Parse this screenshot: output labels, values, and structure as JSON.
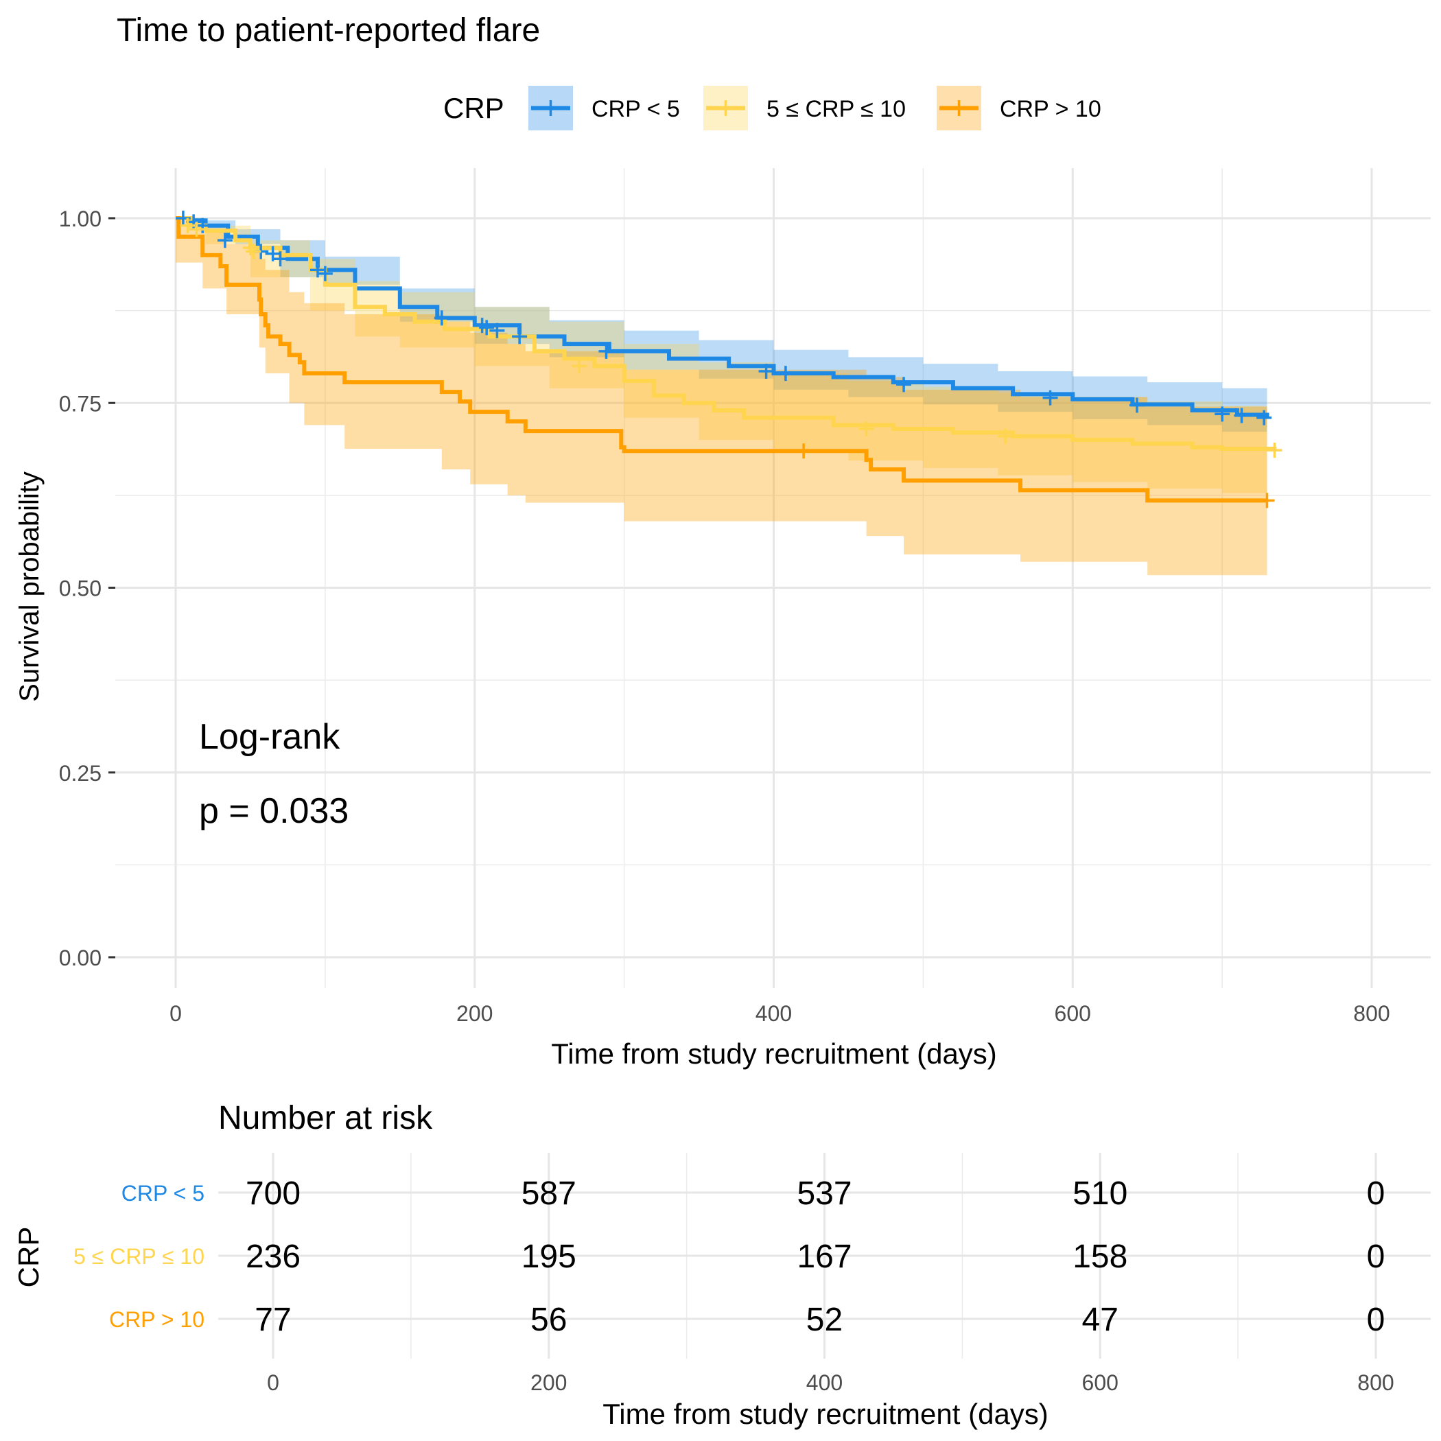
{
  "title": "Time to patient-reported flare",
  "legend": {
    "title": "CRP",
    "items": [
      {
        "label": "CRP < 5",
        "color": "#1E88E5"
      },
      {
        "label": "5 ≤ CRP ≤ 10",
        "color": "#FFD54F"
      },
      {
        "label": "CRP > 10",
        "color": "#FFA000"
      }
    ]
  },
  "annotation": {
    "line1": "Log-rank",
    "line2": "p = 0.033"
  },
  "risk_table": {
    "title": "Number at risk",
    "ylabel": "CRP",
    "xlabel": "Time from study recruitment (days)"
  },
  "chart_data": [
    {
      "type": "line",
      "subtype": "kaplan-meier",
      "title": "Time to patient-reported flare",
      "xlabel": "Time from study recruitment (days)",
      "ylabel": "Survival probability",
      "xlim": [
        0,
        800
      ],
      "ylim": [
        0,
        1
      ],
      "xticks": [
        0,
        200,
        400,
        600,
        800
      ],
      "yticks": [
        0,
        0.25,
        0.5,
        0.75,
        1
      ],
      "ytick_labels": [
        "0.00",
        "0.25",
        "0.50",
        "0.75",
        "1.00"
      ],
      "grid": true,
      "legend_position": "top",
      "series": [
        {
          "name": "CRP < 5",
          "color": "#1E88E5",
          "steps": [
            [
              0,
              1.0
            ],
            [
              10,
              0.997
            ],
            [
              20,
              0.99
            ],
            [
              35,
              0.975
            ],
            [
              55,
              0.96
            ],
            [
              75,
              0.945
            ],
            [
              95,
              0.93
            ],
            [
              120,
              0.905
            ],
            [
              150,
              0.88
            ],
            [
              175,
              0.865
            ],
            [
              200,
              0.855
            ],
            [
              230,
              0.84
            ],
            [
              260,
              0.83
            ],
            [
              290,
              0.82
            ],
            [
              330,
              0.81
            ],
            [
              370,
              0.8
            ],
            [
              400,
              0.79
            ],
            [
              440,
              0.785
            ],
            [
              480,
              0.778
            ],
            [
              520,
              0.77
            ],
            [
              560,
              0.762
            ],
            [
              600,
              0.755
            ],
            [
              640,
              0.748
            ],
            [
              680,
              0.74
            ],
            [
              710,
              0.734
            ],
            [
              730,
              0.73
            ]
          ],
          "upper": [
            [
              0,
              1.0
            ],
            [
              20,
              0.997
            ],
            [
              40,
              0.985
            ],
            [
              70,
              0.97
            ],
            [
              100,
              0.948
            ],
            [
              150,
              0.905
            ],
            [
              200,
              0.88
            ],
            [
              250,
              0.862
            ],
            [
              300,
              0.848
            ],
            [
              350,
              0.835
            ],
            [
              400,
              0.822
            ],
            [
              450,
              0.812
            ],
            [
              500,
              0.803
            ],
            [
              550,
              0.793
            ],
            [
              600,
              0.786
            ],
            [
              650,
              0.778
            ],
            [
              700,
              0.77
            ],
            [
              730,
              0.765
            ]
          ],
          "lower": [
            [
              0,
              1.0
            ],
            [
              20,
              0.985
            ],
            [
              40,
              0.965
            ],
            [
              70,
              0.92
            ],
            [
              100,
              0.91
            ],
            [
              150,
              0.86
            ],
            [
              200,
              0.83
            ],
            [
              250,
              0.812
            ],
            [
              300,
              0.795
            ],
            [
              350,
              0.783
            ],
            [
              400,
              0.768
            ],
            [
              450,
              0.758
            ],
            [
              500,
              0.748
            ],
            [
              550,
              0.738
            ],
            [
              600,
              0.728
            ],
            [
              650,
              0.72
            ],
            [
              700,
              0.711
            ],
            [
              730,
              0.705
            ]
          ],
          "censored": [
            [
              5,
              1.0
            ],
            [
              12,
              0.995
            ],
            [
              18,
              0.99
            ],
            [
              33,
              0.97
            ],
            [
              57,
              0.955
            ],
            [
              65,
              0.952
            ],
            [
              70,
              0.945
            ],
            [
              95,
              0.93
            ],
            [
              100,
              0.925
            ],
            [
              178,
              0.865
            ],
            [
              205,
              0.855
            ],
            [
              208,
              0.852
            ],
            [
              215,
              0.848
            ],
            [
              230,
              0.84
            ],
            [
              288,
              0.82
            ],
            [
              395,
              0.793
            ],
            [
              408,
              0.79
            ],
            [
              487,
              0.775
            ],
            [
              585,
              0.757
            ],
            [
              643,
              0.747
            ],
            [
              700,
              0.735
            ],
            [
              713,
              0.733
            ],
            [
              728,
              0.73
            ]
          ]
        },
        {
          "name": "5 ≤ CRP ≤ 10",
          "color": "#FFD54F",
          "steps": [
            [
              0,
              1.0
            ],
            [
              10,
              0.99
            ],
            [
              20,
              0.983
            ],
            [
              40,
              0.97
            ],
            [
              50,
              0.96
            ],
            [
              70,
              0.95
            ],
            [
              90,
              0.93
            ],
            [
              100,
              0.91
            ],
            [
              120,
              0.88
            ],
            [
              140,
              0.87
            ],
            [
              160,
              0.86
            ],
            [
              180,
              0.85
            ],
            [
              210,
              0.84
            ],
            [
              240,
              0.82
            ],
            [
              260,
              0.81
            ],
            [
              280,
              0.8
            ],
            [
              300,
              0.78
            ],
            [
              320,
              0.76
            ],
            [
              340,
              0.75
            ],
            [
              360,
              0.74
            ],
            [
              380,
              0.73
            ],
            [
              410,
              0.73
            ],
            [
              440,
              0.72
            ],
            [
              480,
              0.715
            ],
            [
              520,
              0.71
            ],
            [
              560,
              0.705
            ],
            [
              600,
              0.7
            ],
            [
              640,
              0.695
            ],
            [
              680,
              0.69
            ],
            [
              700,
              0.688
            ],
            [
              735,
              0.686
            ]
          ],
          "upper": [
            [
              0,
              1.0
            ],
            [
              20,
              0.99
            ],
            [
              50,
              0.97
            ],
            [
              90,
              0.945
            ],
            [
              120,
              0.915
            ],
            [
              150,
              0.9
            ],
            [
              200,
              0.88
            ],
            [
              250,
              0.86
            ],
            [
              300,
              0.83
            ],
            [
              350,
              0.805
            ],
            [
              400,
              0.79
            ],
            [
              450,
              0.78
            ],
            [
              500,
              0.772
            ],
            [
              550,
              0.764
            ],
            [
              600,
              0.758
            ],
            [
              650,
              0.752
            ],
            [
              700,
              0.746
            ],
            [
              730,
              0.744
            ]
          ],
          "lower": [
            [
              0,
              1.0
            ],
            [
              20,
              0.965
            ],
            [
              50,
              0.92
            ],
            [
              90,
              0.875
            ],
            [
              120,
              0.84
            ],
            [
              150,
              0.825
            ],
            [
              200,
              0.8
            ],
            [
              250,
              0.77
            ],
            [
              300,
              0.73
            ],
            [
              350,
              0.7
            ],
            [
              400,
              0.685
            ],
            [
              450,
              0.672
            ],
            [
              500,
              0.662
            ],
            [
              550,
              0.652
            ],
            [
              600,
              0.643
            ],
            [
              650,
              0.634
            ],
            [
              700,
              0.628
            ],
            [
              730,
              0.625
            ]
          ],
          "censored": [
            [
              8,
              0.99
            ],
            [
              14,
              0.985
            ],
            [
              50,
              0.96
            ],
            [
              52,
              0.955
            ],
            [
              270,
              0.8
            ],
            [
              462,
              0.715
            ],
            [
              555,
              0.705
            ],
            [
              735,
              0.686
            ]
          ]
        },
        {
          "name": "CRP > 10",
          "color": "#FFA000",
          "steps": [
            [
              0,
              1.0
            ],
            [
              2,
              0.975
            ],
            [
              18,
              0.95
            ],
            [
              30,
              0.935
            ],
            [
              34,
              0.91
            ],
            [
              56,
              0.89
            ],
            [
              57,
              0.87
            ],
            [
              60,
              0.855
            ],
            [
              62,
              0.84
            ],
            [
              70,
              0.83
            ],
            [
              76,
              0.815
            ],
            [
              83,
              0.805
            ],
            [
              86,
              0.79
            ],
            [
              113,
              0.778
            ],
            [
              178,
              0.765
            ],
            [
              190,
              0.752
            ],
            [
              197,
              0.738
            ],
            [
              222,
              0.725
            ],
            [
              234,
              0.712
            ],
            [
              298,
              0.69
            ],
            [
              300,
              0.685
            ],
            [
              462,
              0.673
            ],
            [
              465,
              0.66
            ],
            [
              487,
              0.645
            ],
            [
              565,
              0.632
            ],
            [
              650,
              0.618
            ],
            [
              730,
              0.618
            ]
          ],
          "upper": [
            [
              0,
              1.0
            ],
            [
              18,
              0.985
            ],
            [
              34,
              0.965
            ],
            [
              56,
              0.945
            ],
            [
              60,
              0.93
            ],
            [
              76,
              0.9
            ],
            [
              86,
              0.885
            ],
            [
              113,
              0.87
            ],
            [
              178,
              0.86
            ],
            [
              197,
              0.845
            ],
            [
              222,
              0.83
            ],
            [
              234,
              0.82
            ],
            [
              300,
              0.795
            ],
            [
              462,
              0.785
            ],
            [
              487,
              0.768
            ],
            [
              565,
              0.758
            ],
            [
              650,
              0.745
            ],
            [
              730,
              0.745
            ]
          ],
          "lower": [
            [
              0,
              0.94
            ],
            [
              18,
              0.905
            ],
            [
              34,
              0.87
            ],
            [
              56,
              0.825
            ],
            [
              60,
              0.79
            ],
            [
              76,
              0.75
            ],
            [
              86,
              0.72
            ],
            [
              113,
              0.688
            ],
            [
              178,
              0.66
            ],
            [
              197,
              0.64
            ],
            [
              222,
              0.625
            ],
            [
              234,
              0.615
            ],
            [
              300,
              0.59
            ],
            [
              462,
              0.57
            ],
            [
              487,
              0.545
            ],
            [
              565,
              0.535
            ],
            [
              650,
              0.517
            ],
            [
              730,
              0.517
            ]
          ],
          "censored": [
            [
              420,
              0.685
            ],
            [
              730,
              0.618
            ]
          ]
        }
      ]
    },
    {
      "type": "table",
      "title": "Number at risk",
      "xlabel": "Time from study recruitment (days)",
      "ylabel": "CRP",
      "xlim": [
        0,
        800
      ],
      "xticks": [
        0,
        200,
        400,
        600,
        800
      ],
      "times": [
        0,
        200,
        400,
        600,
        800
      ],
      "rows": [
        {
          "name": "CRP < 5",
          "color": "#1E88E5",
          "values": [
            700,
            587,
            537,
            510,
            0
          ]
        },
        {
          "name": "5 ≤ CRP ≤ 10",
          "color": "#FFD54F",
          "values": [
            236,
            195,
            167,
            158,
            0
          ]
        },
        {
          "name": "CRP > 10",
          "color": "#FFA000",
          "values": [
            77,
            56,
            52,
            47,
            0
          ]
        }
      ]
    }
  ]
}
